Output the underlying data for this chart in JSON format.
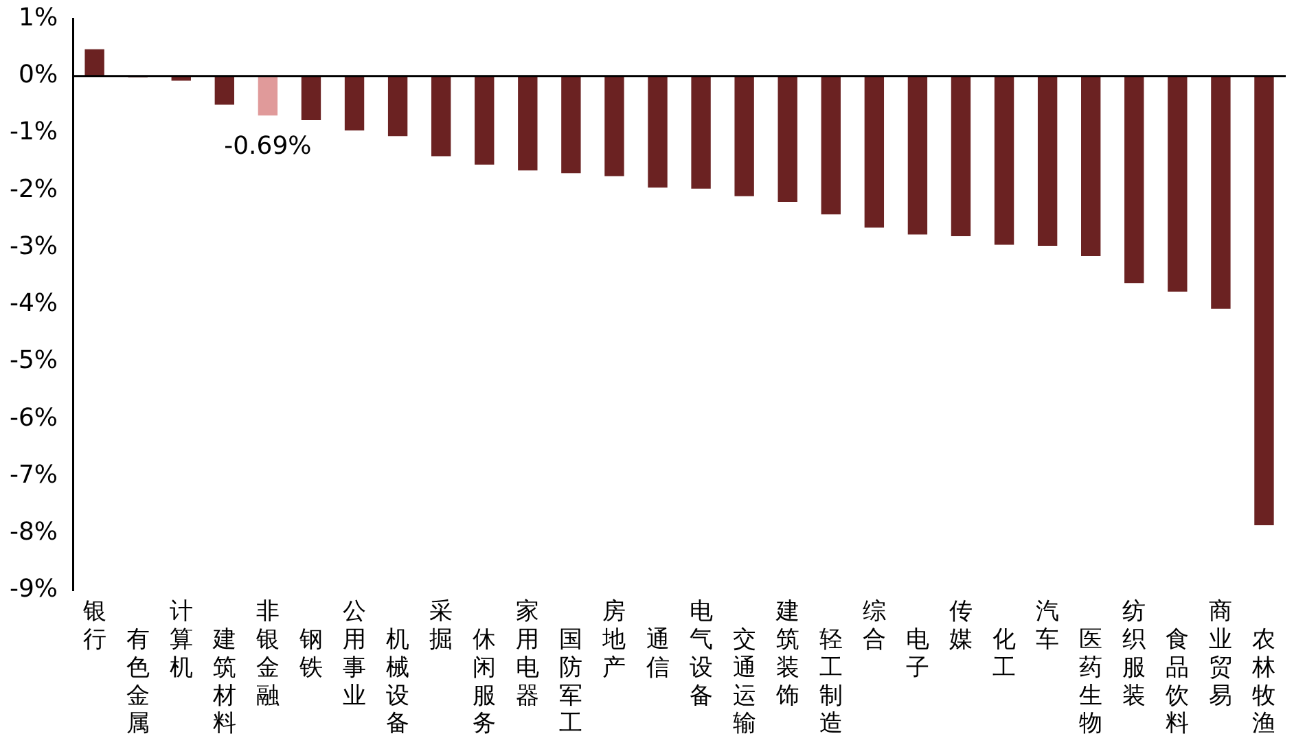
{
  "chart_data": {
    "type": "bar",
    "categories": [
      "银行",
      "有色金属",
      "计算机",
      "建筑材料",
      "非银金融",
      "钢铁",
      "公用事业",
      "机械设备",
      "采掘",
      "休闲服务",
      "家用电器",
      "国防军工",
      "房地产",
      "通信",
      "电气设备",
      "交通运输",
      "建筑装饰",
      "轻工制造",
      "综合",
      "电子",
      "传媒",
      "化工",
      "汽车",
      "医药生物",
      "纺织服装",
      "食品饮料",
      "商业贸易",
      "农林牧渔"
    ],
    "values": [
      0.47,
      -0.02,
      -0.08,
      -0.5,
      -0.69,
      -0.77,
      -0.95,
      -1.05,
      -1.4,
      -1.55,
      -1.65,
      -1.7,
      -1.75,
      -1.95,
      -1.97,
      -2.1,
      -2.2,
      -2.42,
      -2.65,
      -2.77,
      -2.8,
      -2.95,
      -2.97,
      -3.15,
      -3.62,
      -3.77,
      -4.07,
      -7.86
    ],
    "colors": [
      "#6b2222",
      "#6b2222",
      "#6b2222",
      "#6b2222",
      "#e09a9a",
      "#6b2222",
      "#6b2222",
      "#6b2222",
      "#6b2222",
      "#6b2222",
      "#6b2222",
      "#6b2222",
      "#6b2222",
      "#6b2222",
      "#6b2222",
      "#6b2222",
      "#6b2222",
      "#6b2222",
      "#6b2222",
      "#6b2222",
      "#6b2222",
      "#6b2222",
      "#6b2222",
      "#6b2222",
      "#6b2222",
      "#6b2222",
      "#6b2222",
      "#6b2222"
    ],
    "ylim": [
      -9,
      1
    ],
    "yticks": [
      {
        "value": 1,
        "label": "1%"
      },
      {
        "value": 0,
        "label": "0%"
      },
      {
        "value": -1,
        "label": "-1%"
      },
      {
        "value": -2,
        "label": "-2%"
      },
      {
        "value": -3,
        "label": "-3%"
      },
      {
        "value": -4,
        "label": "-4%"
      },
      {
        "value": -5,
        "label": "-5%"
      },
      {
        "value": -6,
        "label": "-6%"
      },
      {
        "value": -7,
        "label": "-7%"
      },
      {
        "value": -8,
        "label": "-8%"
      },
      {
        "value": -9,
        "label": "-9%"
      }
    ],
    "annotations": [
      {
        "text": "-0.69%",
        "x": "非银金融",
        "y": -0.69
      }
    ],
    "ref_lines": [
      {
        "axis": "y",
        "value": 0,
        "color": "#000000"
      }
    ],
    "grid": false,
    "legend": false
  }
}
